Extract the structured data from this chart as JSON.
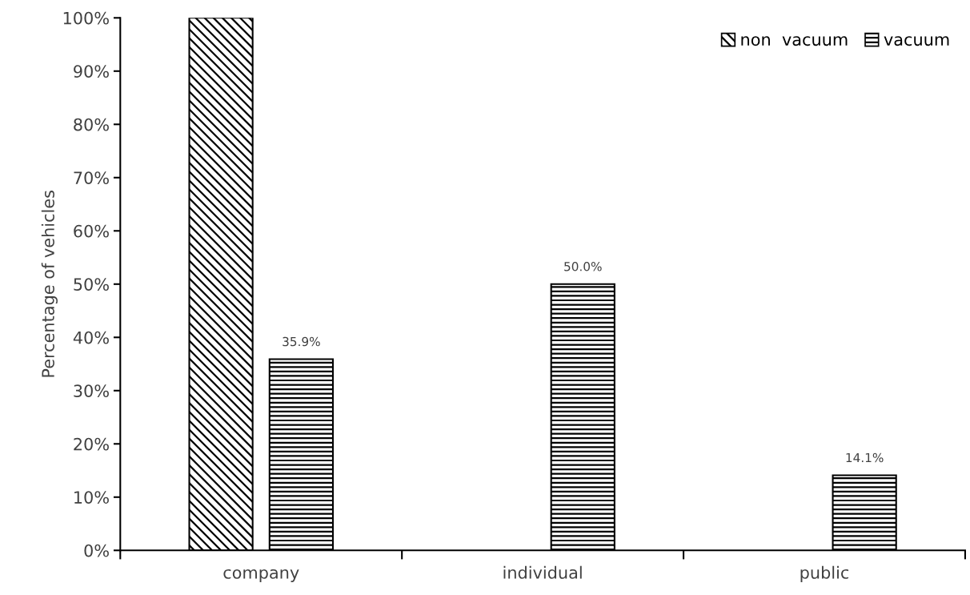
{
  "chart_data": {
    "type": "bar",
    "ylabel": "Percentage of vehicles",
    "categories": [
      "company",
      "individual",
      "public"
    ],
    "series": [
      {
        "name": "non  vacuum",
        "color": "#000000",
        "values": [
          100,
          null,
          null
        ]
      },
      {
        "name": "vacuum",
        "color": "#000000",
        "values": [
          35.9,
          50.0,
          14.1
        ],
        "value_labels": [
          "35.9%",
          "50.0%",
          "14.1%"
        ]
      }
    ],
    "ylim": [
      0,
      100
    ],
    "yticks": [
      {
        "value": 0,
        "label": "0%"
      },
      {
        "value": 10,
        "label": "10%"
      },
      {
        "value": 20,
        "label": "20%"
      },
      {
        "value": 30,
        "label": "30%"
      },
      {
        "value": 40,
        "label": "40%"
      },
      {
        "value": 50,
        "label": "50%"
      },
      {
        "value": 60,
        "label": "60%"
      },
      {
        "value": 70,
        "label": "70%"
      },
      {
        "value": 80,
        "label": "80%"
      },
      {
        "value": 90,
        "label": "90%"
      },
      {
        "value": 100,
        "label": "100%"
      }
    ],
    "grid": false,
    "legend": "top right"
  }
}
